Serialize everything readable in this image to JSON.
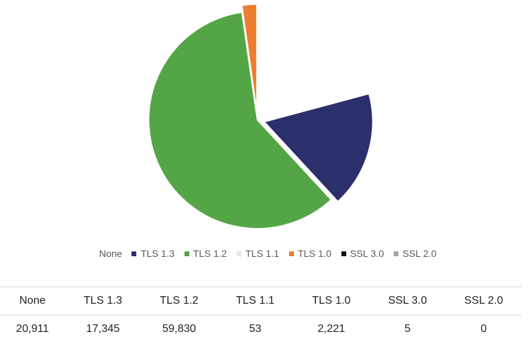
{
  "chart_data": {
    "type": "pie",
    "categories": [
      "None",
      "TLS 1.3",
      "TLS 1.2",
      "TLS 1.1",
      "TLS 1.0",
      "SSL 3.0",
      "SSL 2.0"
    ],
    "values": [
      20911,
      17345,
      59830,
      53,
      2221,
      5,
      0
    ],
    "display_values": [
      "20,911",
      "17,345",
      "59,830",
      "53",
      "2,221",
      "5",
      "0"
    ],
    "colors": [
      "#ffffff",
      "#2b2f6b",
      "#54a546",
      "#e6e6ee",
      "#ee7d31",
      "#111111",
      "#a6a6a6"
    ],
    "start_angle_deg": 0,
    "direction": "clockwise",
    "exploded_slices": [
      "TLS 1.3",
      "TLS 1.1",
      "TLS 1.0",
      "SSL 3.0",
      "SSL 2.0"
    ],
    "legend_position": "bottom",
    "title": ""
  }
}
